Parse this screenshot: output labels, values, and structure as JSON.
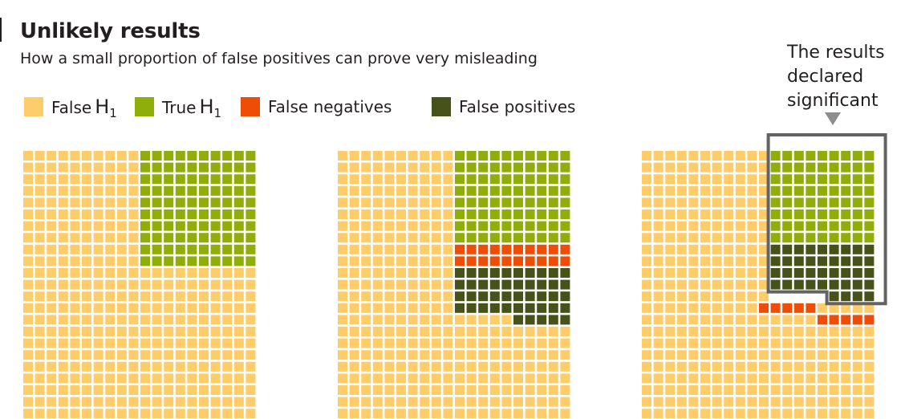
{
  "header": {
    "title": "Unlikely results",
    "subtitle": "How a small proportion of false positives can prove very misleading"
  },
  "legend": {
    "items": [
      {
        "key": "false_h1",
        "label": "False",
        "symbol": "H",
        "sub": "1",
        "color": "#fecd6a"
      },
      {
        "key": "true_h1",
        "label": "True",
        "symbol": "H",
        "sub": "1",
        "color": "#8fae09"
      },
      {
        "key": "false_neg",
        "label": "False negatives",
        "symbol": "",
        "sub": "",
        "color": "#ed4d07"
      },
      {
        "key": "false_pos",
        "label": "False positives",
        "symbol": "",
        "sub": "",
        "color": "#465219"
      }
    ]
  },
  "annotation": {
    "text": "The results\ndeclared\nsignificant",
    "box_color": "#636363",
    "arrow_color": "#8d8d8d"
  },
  "colors": {
    "false_h1": "#fecd6a",
    "true_h1": "#8fae09",
    "false_neg": "#ed4d07",
    "false_pos": "#465219"
  },
  "panels": [
    {
      "id": "population",
      "total": 1000,
      "true_h1": 100,
      "false_h1": 900
    },
    {
      "id": "tested",
      "total": 1000,
      "true_positives": 80,
      "false_negatives": 20,
      "false_positives": 45,
      "true_negatives": 855
    },
    {
      "id": "regrouped",
      "total": 1000,
      "true_positives": 80,
      "false_positives": 45,
      "false_negatives": 20,
      "true_negatives": 855
    }
  ]
}
